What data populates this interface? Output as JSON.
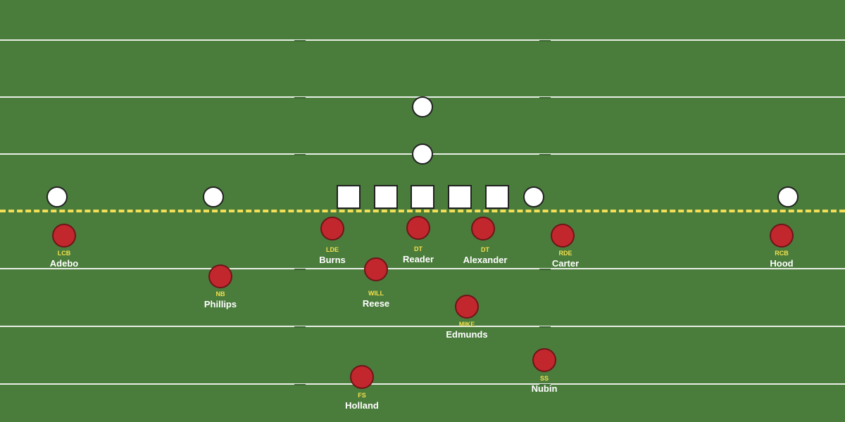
{
  "colors": {
    "field": "#4a7c3c",
    "yard_line": "#e9efe6",
    "line_of_scrimmage": "#f2df57",
    "offense": "#ffffff",
    "defense": "#c1272d",
    "position_label": "#f4e04d",
    "name_label": "#ffffff"
  },
  "defense": {
    "lcb": {
      "position": "LCB",
      "name": "Adebo"
    },
    "nb": {
      "position": "NB",
      "name": "Phillips"
    },
    "lde": {
      "position": "LDE",
      "name": "Burns"
    },
    "will": {
      "position": "WILL",
      "name": "Reese"
    },
    "dt1": {
      "position": "DT",
      "name": "Reader"
    },
    "dt2": {
      "position": "DT",
      "name": "Alexander"
    },
    "mike": {
      "position": "MIKE",
      "name": "Edmunds"
    },
    "rde": {
      "position": "RDE",
      "name": "Carter"
    },
    "ss": {
      "position": "SS",
      "name": "Nubin"
    },
    "fs": {
      "position": "FS",
      "name": "Holland"
    },
    "rcb": {
      "position": "RCB",
      "name": "Hood"
    }
  }
}
